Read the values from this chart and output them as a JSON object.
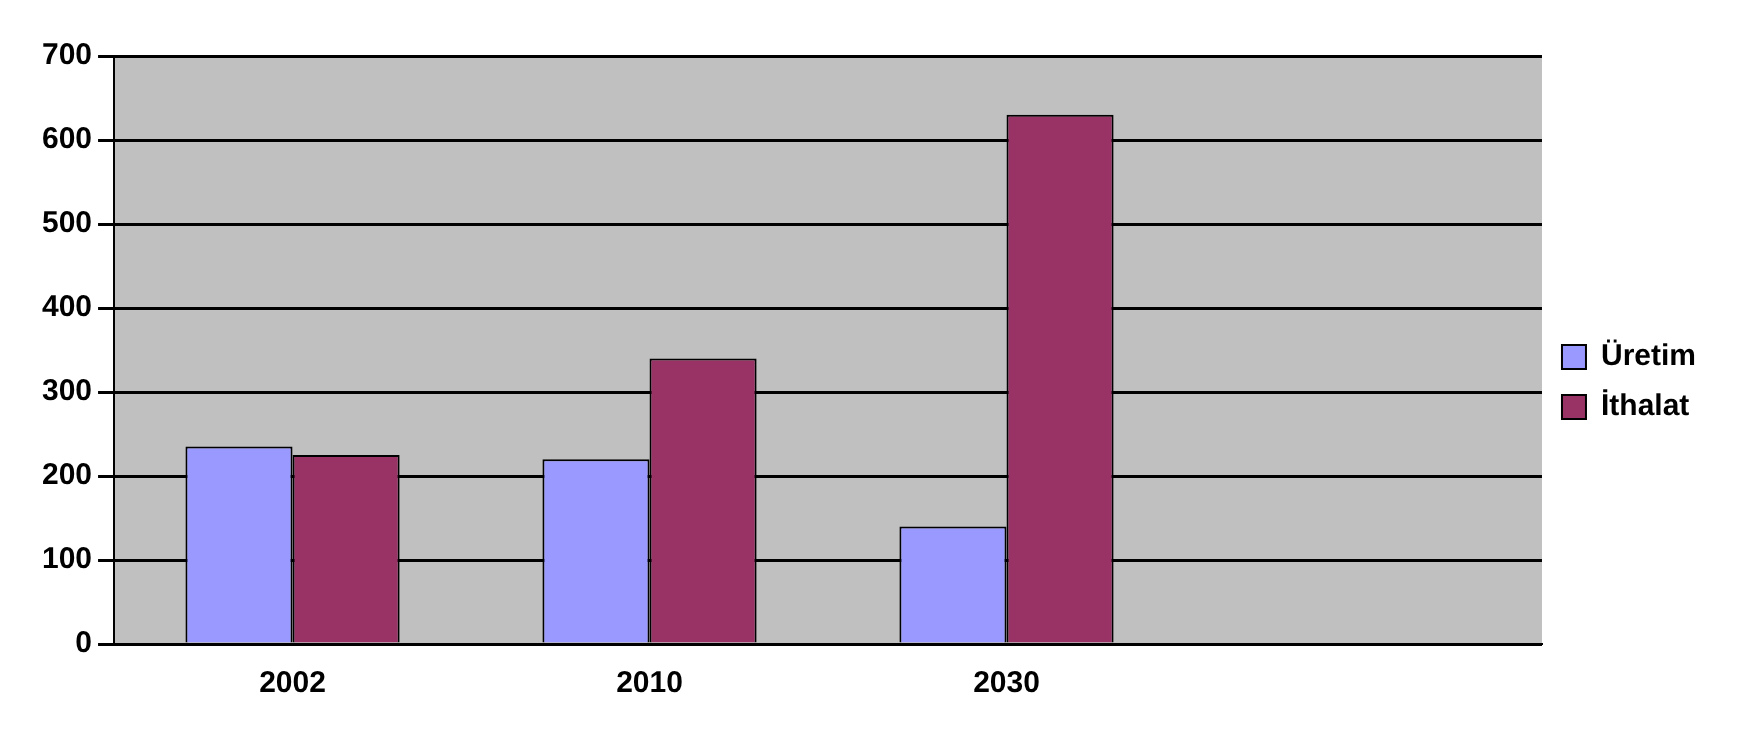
{
  "chart_data": {
    "type": "bar",
    "categories": [
      "2002",
      "2010",
      "2030",
      null
    ],
    "series": [
      {
        "name": "Üretim",
        "color": "#9999ff",
        "values": [
          235,
          220,
          140,
          null
        ]
      },
      {
        "name": "İthalat",
        "color": "#993366",
        "values": [
          225,
          340,
          630,
          null
        ]
      }
    ],
    "ylim": [
      0,
      700
    ],
    "yticks": [
      0,
      100,
      200,
      300,
      400,
      500,
      600,
      700
    ],
    "grid": "y",
    "legend": "right"
  }
}
